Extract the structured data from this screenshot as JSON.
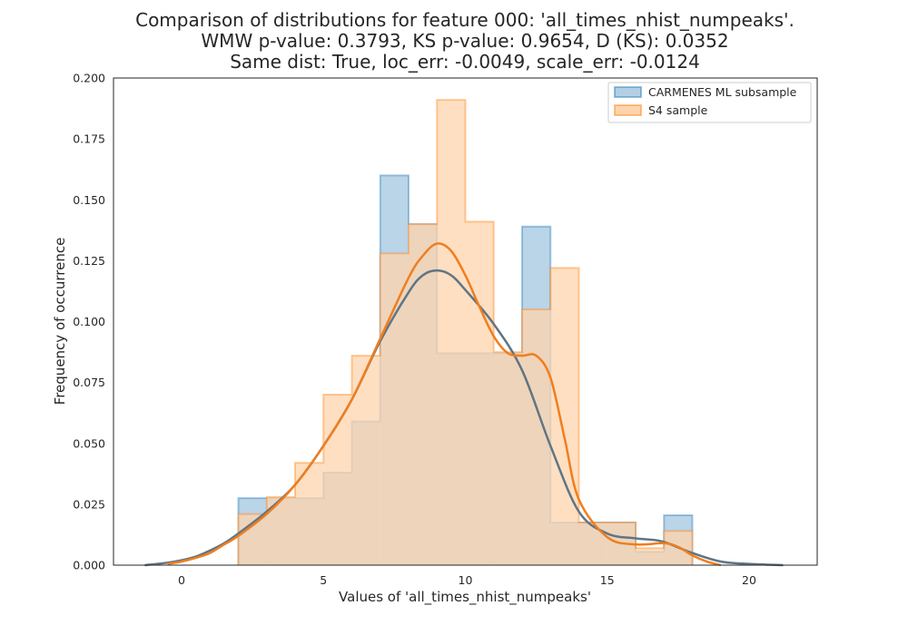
{
  "chart_data": {
    "type": "histogram",
    "title_lines": [
      "Comparison of distributions for feature 000: 'all_times_nhist_numpeaks'.",
      "WMW p-value: 0.3793, KS p-value: 0.9654, D (KS): 0.0352",
      "Same dist: True, loc_err: -0.0049, scale_err: -0.0124"
    ],
    "xlabel": "Values of 'all_times_nhist_numpeaks'",
    "ylabel": "Frequency of occurrence",
    "xlim": [
      -2.4,
      22.4
    ],
    "ylim": [
      0,
      0.2
    ],
    "xticks": [
      0,
      5,
      10,
      15,
      20
    ],
    "xtick_labels": [
      "0",
      "5",
      "10",
      "15",
      "20"
    ],
    "yticks": [
      0,
      0.025,
      0.05,
      0.075,
      0.1,
      0.125,
      0.15,
      0.175,
      0.2
    ],
    "ytick_labels": [
      "0.000",
      "0.025",
      "0.050",
      "0.075",
      "0.100",
      "0.125",
      "0.150",
      "0.175",
      "0.200"
    ],
    "grid": false,
    "legend_position": "top-right",
    "series": [
      {
        "name": "CARMENES ML subsample",
        "color": "#1f77b4",
        "fill": "#b3cfe6",
        "bins": [
          {
            "x0": 2,
            "x1": 4,
            "y": 0.0275
          },
          {
            "x0": 4,
            "x1": 5,
            "y": 0.0275
          },
          {
            "x0": 5,
            "x1": 6,
            "y": 0.038
          },
          {
            "x0": 6,
            "x1": 7,
            "y": 0.059
          },
          {
            "x0": 7,
            "x1": 8,
            "y": 0.16
          },
          {
            "x0": 8,
            "x1": 9,
            "y": 0.14
          },
          {
            "x0": 9,
            "x1": 10,
            "y": 0.087
          },
          {
            "x0": 10,
            "x1": 12,
            "y": 0.087
          },
          {
            "x0": 12,
            "x1": 13,
            "y": 0.139
          },
          {
            "x0": 13,
            "x1": 15,
            "y": 0.0175
          },
          {
            "x0": 15,
            "x1": 16,
            "y": 0.0175
          },
          {
            "x0": 16,
            "x1": 17,
            "y": 0.0055
          },
          {
            "x0": 17,
            "x1": 18,
            "y": 0.0205
          }
        ],
        "kde": {
          "color": "#5f7585",
          "points": [
            [
              -1.3,
              0.0
            ],
            [
              -0.5,
              0.001
            ],
            [
              0,
              0.002
            ],
            [
              0.5,
              0.0035
            ],
            [
              1,
              0.006
            ],
            [
              1.5,
              0.009
            ],
            [
              2,
              0.013
            ],
            [
              3,
              0.022
            ],
            [
              4,
              0.033
            ],
            [
              5,
              0.049
            ],
            [
              6,
              0.068
            ],
            [
              7,
              0.092
            ],
            [
              8,
              0.112
            ],
            [
              8.5,
              0.119
            ],
            [
              9,
              0.121
            ],
            [
              9.5,
              0.119
            ],
            [
              10,
              0.113
            ],
            [
              11,
              0.099
            ],
            [
              12,
              0.08
            ],
            [
              13,
              0.049
            ],
            [
              14,
              0.022
            ],
            [
              15,
              0.013
            ],
            [
              16,
              0.011
            ],
            [
              16.5,
              0.0105
            ],
            [
              17,
              0.0095
            ],
            [
              18,
              0.005
            ],
            [
              19,
              0.0015
            ],
            [
              20,
              0.0005
            ],
            [
              21.2,
              0.0
            ]
          ]
        }
      },
      {
        "name": "S4 sample",
        "color": "#ff7f0e",
        "fill": "#ffd4ac",
        "bins": [
          {
            "x0": 2,
            "x1": 3,
            "y": 0.021
          },
          {
            "x0": 3,
            "x1": 4,
            "y": 0.028
          },
          {
            "x0": 4,
            "x1": 5,
            "y": 0.042
          },
          {
            "x0": 5,
            "x1": 6,
            "y": 0.07
          },
          {
            "x0": 6,
            "x1": 7,
            "y": 0.086
          },
          {
            "x0": 7,
            "x1": 8,
            "y": 0.128
          },
          {
            "x0": 8,
            "x1": 9,
            "y": 0.14
          },
          {
            "x0": 9,
            "x1": 10,
            "y": 0.191
          },
          {
            "x0": 10,
            "x1": 11,
            "y": 0.141
          },
          {
            "x0": 11,
            "x1": 12,
            "y": 0.0875
          },
          {
            "x0": 12,
            "x1": 13,
            "y": 0.105
          },
          {
            "x0": 13,
            "x1": 14,
            "y": 0.122
          },
          {
            "x0": 14,
            "x1": 15,
            "y": 0.0175
          },
          {
            "x0": 15,
            "x1": 16,
            "y": 0.0175
          },
          {
            "x0": 16,
            "x1": 17,
            "y": 0.007
          },
          {
            "x0": 17,
            "x1": 18,
            "y": 0.014
          }
        ],
        "kde": {
          "color": "#ef7e1f",
          "points": [
            [
              -0.5,
              0.0005
            ],
            [
              0,
              0.0015
            ],
            [
              0.5,
              0.003
            ],
            [
              1,
              0.005
            ],
            [
              1.5,
              0.0085
            ],
            [
              2,
              0.012
            ],
            [
              3,
              0.021
            ],
            [
              4,
              0.033
            ],
            [
              5,
              0.049
            ],
            [
              6,
              0.068
            ],
            [
              7,
              0.093
            ],
            [
              8,
              0.118
            ],
            [
              8.5,
              0.127
            ],
            [
              9,
              0.132
            ],
            [
              9.5,
              0.129
            ],
            [
              10,
              0.119
            ],
            [
              10.5,
              0.106
            ],
            [
              11,
              0.094
            ],
            [
              11.5,
              0.087
            ],
            [
              12,
              0.086
            ],
            [
              12.5,
              0.086
            ],
            [
              13,
              0.077
            ],
            [
              13.5,
              0.052
            ],
            [
              14,
              0.027
            ],
            [
              15,
              0.0115
            ],
            [
              16,
              0.0085
            ],
            [
              17,
              0.009
            ],
            [
              17.5,
              0.0075
            ],
            [
              18,
              0.004
            ],
            [
              18.5,
              0.0015
            ],
            [
              19,
              0.0
            ]
          ]
        }
      }
    ]
  }
}
